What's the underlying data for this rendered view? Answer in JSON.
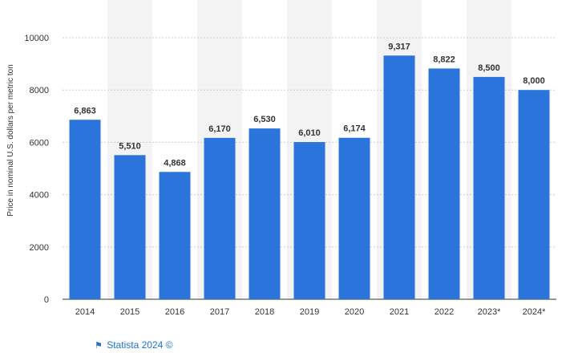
{
  "chart_data": {
    "type": "bar",
    "categories": [
      "2014",
      "2015",
      "2016",
      "2017",
      "2018",
      "2019",
      "2020",
      "2021",
      "2022",
      "2023*",
      "2024*"
    ],
    "values": [
      6863,
      5510,
      4868,
      6170,
      6530,
      6010,
      6174,
      9317,
      8822,
      8500,
      8000
    ],
    "data_labels": [
      "6,863",
      "5,510",
      "4,868",
      "6,170",
      "6,530",
      "6,010",
      "6,174",
      "9,317",
      "8,822",
      "8,500",
      "8,000"
    ],
    "ylabel": "Price in nominal U.S. dollars per metric ton",
    "xlabel": "",
    "ylim": [
      0,
      10000
    ],
    "yticks": [
      0,
      2000,
      4000,
      6000,
      8000,
      10000
    ],
    "grid": true,
    "legend": "none",
    "colors": {
      "bar": "#2a74dc",
      "band": "#f3f3f3",
      "grid": "#cccccc",
      "label": "#333333",
      "axis_text": "#333333"
    }
  },
  "footer": {
    "credit": "Statista 2024 ©",
    "flag_icon": "flag-icon"
  }
}
